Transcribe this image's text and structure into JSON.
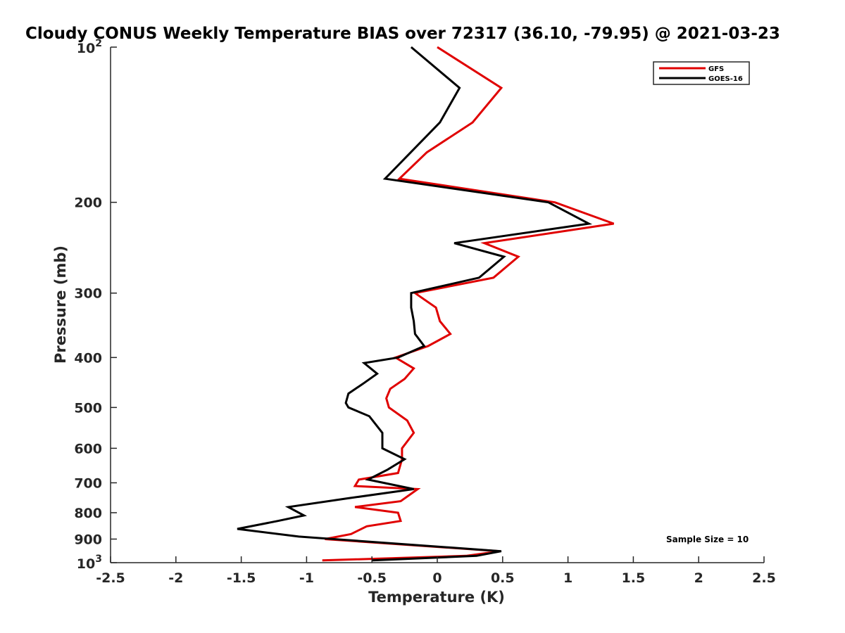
{
  "chart_data": {
    "type": "line",
    "title": "Cloudy CONUS Weekly Temperature BIAS over 72317 (36.10, -79.95) @ 2021-03-23",
    "xlabel": "Temperature (K)",
    "ylabel": "Pressure (mb)",
    "xlim": [
      -2.5,
      2.5
    ],
    "ylim": [
      100,
      1000
    ],
    "y_scale": "log",
    "y_reversed": true,
    "grid": false,
    "legend_position": "top-right",
    "x_ticks": [
      -2.5,
      -2,
      -1.5,
      -1,
      -0.5,
      0,
      0.5,
      1,
      1.5,
      2,
      2.5
    ],
    "x_tick_labels": [
      "-2.5",
      "-2",
      "-1.5",
      "-1",
      "-0.5",
      "0",
      "0.5",
      "1",
      "1.5",
      "2",
      "2.5"
    ],
    "y_ticks": [
      200,
      300,
      400,
      500,
      600,
      700,
      800,
      900
    ],
    "y_tick_labels": [
      "200",
      "300",
      "400",
      "500",
      "600",
      "700",
      "800",
      "900"
    ],
    "y_tick_top": {
      "base": "10",
      "exp": "2"
    },
    "y_tick_bottom": {
      "base": "10",
      "exp": "3"
    },
    "series": [
      {
        "name": "GFS",
        "color": "#e00000",
        "x": [
          0.0,
          0.49,
          0.27,
          -0.08,
          -0.29,
          0.9,
          1.35,
          0.36,
          0.62,
          0.43,
          -0.17,
          -0.01,
          0.02,
          0.1,
          -0.07,
          -0.32,
          -0.18,
          -0.25,
          -0.36,
          -0.39,
          -0.37,
          -0.23,
          -0.18,
          -0.27,
          -0.27,
          -0.3,
          -0.6,
          -0.63,
          -0.15,
          -0.28,
          -0.63,
          -0.3,
          -0.28,
          -0.54,
          -0.66,
          -0.86,
          0.48,
          0.22,
          -0.88
        ],
        "y": [
          100,
          120,
          140,
          160,
          180,
          200,
          220,
          240,
          255,
          280,
          300,
          320,
          340,
          360,
          380,
          400,
          420,
          440,
          460,
          480,
          500,
          530,
          560,
          600,
          630,
          670,
          690,
          710,
          720,
          760,
          780,
          800,
          830,
          850,
          880,
          900,
          950,
          970,
          990
        ]
      },
      {
        "name": "GOES-16",
        "color": "#000000",
        "x": [
          -0.2,
          0.17,
          0.02,
          -0.4,
          0.85,
          1.16,
          0.13,
          0.51,
          0.32,
          -0.2,
          -0.2,
          -0.18,
          -0.17,
          -0.1,
          -0.3,
          -0.56,
          -0.46,
          -0.57,
          -0.68,
          -0.7,
          -0.68,
          -0.52,
          -0.42,
          -0.42,
          -0.25,
          -0.38,
          -0.53,
          -0.18,
          -0.68,
          -1.14,
          -1.02,
          -1.22,
          -1.53,
          -1.06,
          0.49,
          0.3,
          -0.5
        ],
        "y": [
          100,
          120,
          140,
          180,
          200,
          220,
          240,
          255,
          280,
          300,
          320,
          340,
          360,
          380,
          400,
          410,
          430,
          450,
          470,
          490,
          500,
          520,
          560,
          600,
          630,
          660,
          690,
          720,
          750,
          780,
          810,
          830,
          860,
          890,
          950,
          970,
          990
        ]
      }
    ],
    "annotation": "Sample Size = 10"
  }
}
